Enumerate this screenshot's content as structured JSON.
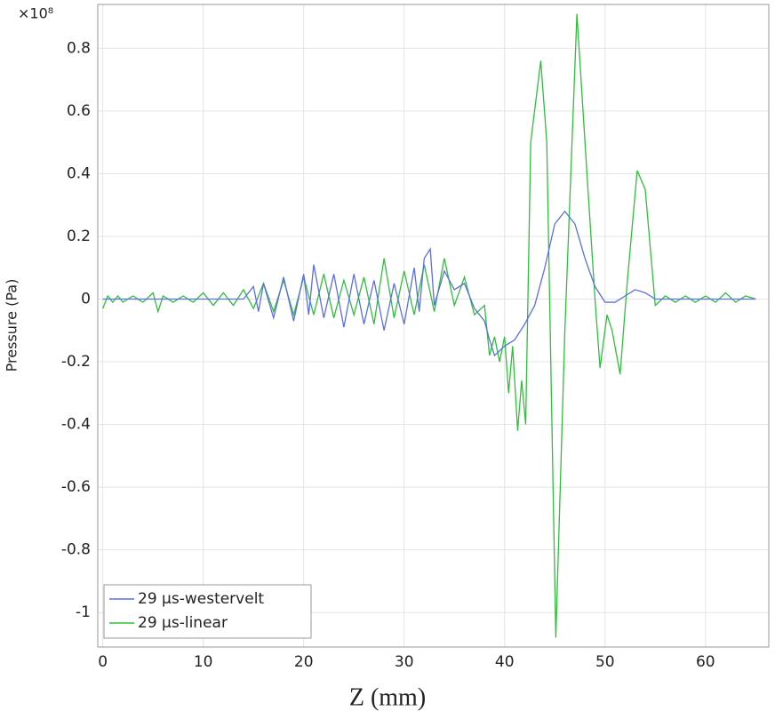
{
  "chart_data": {
    "type": "line",
    "y_multiplier": "×10⁸",
    "xlabel": "Z (mm)",
    "ylabel": "Pressure (Pa)",
    "xlim": [
      -0.5,
      66.3
    ],
    "ylim": [
      -1.11,
      0.94
    ],
    "xticks": [
      0,
      10,
      20,
      30,
      40,
      50,
      60
    ],
    "yticks": [
      -1,
      -0.8,
      -0.6,
      -0.4,
      -0.2,
      0,
      0.2,
      0.4,
      0.6,
      0.8
    ],
    "grid": true,
    "legend": "lower left",
    "series": [
      {
        "name": "29 µs-linear",
        "color": "#2fbf3a",
        "x": [
          0,
          0.5,
          1,
          1.5,
          2,
          3,
          4,
          5,
          5.5,
          6,
          7,
          8,
          9,
          10,
          11,
          12,
          13,
          14,
          15,
          16,
          17,
          18,
          19,
          20,
          21,
          22,
          23,
          24,
          25,
          26,
          27,
          28,
          29,
          30,
          31,
          32,
          33,
          34,
          35,
          36,
          37,
          38,
          38.5,
          39,
          39.5,
          40,
          40.4,
          40.8,
          41.3,
          41.7,
          42.1,
          42.6,
          43.6,
          44.2,
          45.1,
          46,
          47.2,
          48.2,
          49,
          49.5,
          50.2,
          50.7,
          51.5,
          52.2,
          53.2,
          54,
          55,
          56,
          57,
          58,
          59,
          60,
          61,
          62,
          63,
          64,
          65
        ],
        "values": [
          -0.03,
          0.01,
          -0.01,
          0.01,
          -0.01,
          0.01,
          -0.01,
          0.02,
          -0.04,
          0.01,
          -0.01,
          0.01,
          -0.01,
          0.02,
          -0.02,
          0.02,
          -0.02,
          0.03,
          -0.03,
          0.05,
          -0.04,
          0.06,
          -0.05,
          0.07,
          -0.05,
          0.08,
          -0.06,
          0.06,
          -0.05,
          0.07,
          -0.08,
          0.13,
          -0.06,
          0.09,
          -0.05,
          0.11,
          -0.04,
          0.13,
          -0.02,
          0.07,
          -0.05,
          -0.02,
          -0.18,
          -0.12,
          -0.2,
          -0.12,
          -0.3,
          -0.15,
          -0.42,
          -0.26,
          -0.4,
          0.5,
          0.76,
          0.5,
          -1.08,
          -0.1,
          0.91,
          0.4,
          0,
          -0.22,
          -0.05,
          -0.1,
          -0.24,
          0.05,
          0.41,
          0.35,
          -0.02,
          0.01,
          -0.01,
          0.01,
          -0.01,
          0.01,
          -0.01,
          0.02,
          -0.01,
          0.01,
          0
        ]
      },
      {
        "name": "29 µs-westervelt",
        "color": "#5b6ee8",
        "x": [
          0,
          14,
          15,
          15.5,
          16,
          17,
          18,
          19,
          20,
          20.5,
          21,
          22,
          23,
          24,
          25,
          26,
          27,
          28,
          29,
          30,
          31,
          31.5,
          32,
          32.6,
          33,
          34,
          35,
          36,
          37,
          38,
          38.5,
          39,
          40,
          41,
          42,
          43,
          44,
          45,
          46,
          47,
          48,
          49,
          50,
          51,
          52,
          53,
          54,
          55,
          65
        ],
        "values": [
          0,
          0,
          0.04,
          -0.04,
          0.05,
          -0.06,
          0.07,
          -0.07,
          0.08,
          -0.05,
          0.11,
          -0.06,
          0.08,
          -0.09,
          0.08,
          -0.08,
          0.06,
          -0.1,
          0.05,
          -0.08,
          0.1,
          -0.04,
          0.13,
          0.16,
          -0.02,
          0.09,
          0.03,
          0.05,
          -0.03,
          -0.07,
          -0.13,
          -0.18,
          -0.15,
          -0.13,
          -0.08,
          -0.02,
          0.1,
          0.24,
          0.28,
          0.24,
          0.13,
          0.04,
          -0.01,
          -0.01,
          0.01,
          0.03,
          0.02,
          0,
          0
        ]
      }
    ]
  }
}
